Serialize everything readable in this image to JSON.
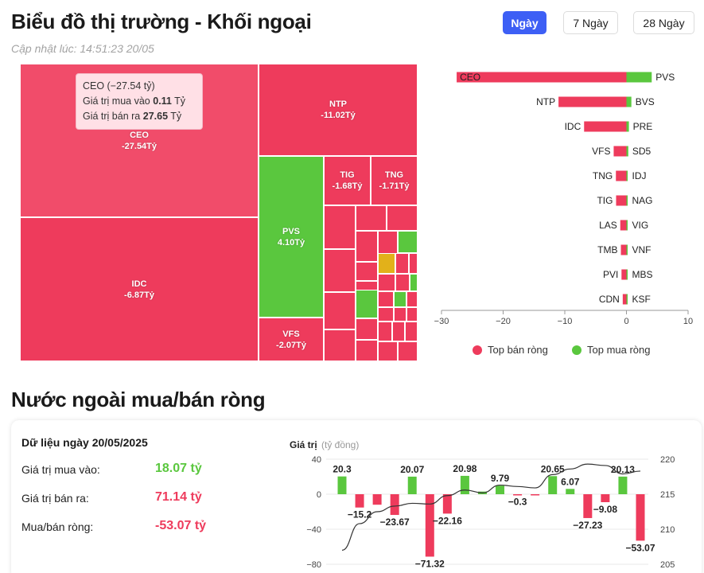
{
  "header": {
    "title": "Biểu đồ thị trường - Khối ngoại",
    "updated": "Cập nhật lúc: 14:51:23 20/05",
    "ranges": [
      "Ngày",
      "7 Ngày",
      "28 Ngày"
    ],
    "active_range": "Ngày"
  },
  "colors": {
    "sell": "#ee3b5c",
    "buy": "#5ac73e",
    "neutral": "#e2b11a",
    "accent": "#3d5ff5"
  },
  "treemap": {
    "tiles": [
      {
        "name": "CEO",
        "value": "-27.54Tỷ"
      },
      {
        "name": "IDC",
        "value": "-6.87Tỷ"
      },
      {
        "name": "NTP",
        "value": "-11.02Tỷ"
      },
      {
        "name": "PVS",
        "value": "4.10Tỷ"
      },
      {
        "name": "TIG",
        "value": "-1.68Tỷ"
      },
      {
        "name": "TNG",
        "value": "-1.71Tỷ"
      },
      {
        "name": "VFS",
        "value": "-2.07Tỷ"
      }
    ],
    "tooltip": {
      "title": "CEO (−27.54 tỷ)",
      "buy_label": "Giá trị mua vào",
      "buy_value": "0.11",
      "buy_unit": "Tỷ",
      "sell_label": "Giá trị bán ra",
      "sell_value": "27.65",
      "sell_unit": "Tỷ"
    }
  },
  "chart_data": [
    {
      "type": "bar",
      "orientation": "horizontal",
      "sell_tickers": [
        "CEO",
        "NTP",
        "IDC",
        "VFS",
        "TNG",
        "TIG",
        "LAS",
        "TMB",
        "PVI",
        "CDN"
      ],
      "sell_values": [
        -27.54,
        -11.02,
        -6.87,
        -2.07,
        -1.71,
        -1.68,
        -1.0,
        -0.9,
        -0.8,
        -0.6
      ],
      "buy_tickers": [
        "PVS",
        "BVS",
        "PRE",
        "SD5",
        "IDJ",
        "NAG",
        "VIG",
        "VNF",
        "MBS",
        "KSF"
      ],
      "buy_values": [
        4.1,
        0.8,
        0.4,
        0.3,
        0.2,
        0.2,
        0.15,
        0.1,
        0.1,
        0.05
      ],
      "xlim": [
        -30,
        10
      ],
      "xticks": [
        -30,
        -20,
        -10,
        0,
        10
      ],
      "legend": [
        "Top bán ròng",
        "Top mua ròng"
      ],
      "legend_position": "bottom"
    },
    {
      "type": "bar",
      "title": "Giá trị",
      "unit": "(tỷ đồng)",
      "values": [
        20.3,
        -15.2,
        -12,
        -23.67,
        20.07,
        -71.32,
        -22.16,
        20.98,
        3,
        9.79,
        -0.3,
        -1,
        20.65,
        6.07,
        -27.23,
        -9.08,
        20.13,
        -53.07
      ],
      "labels": [
        "20.3",
        "−15.2",
        "",
        "−23.67",
        "20.07",
        "−71.32",
        "−22.16",
        "20.98",
        "",
        "9.79",
        "−0.3",
        "",
        "20.65",
        "6.07",
        "−27.23",
        "−9.08",
        "20.13",
        "−53.07"
      ],
      "line_values": [
        207,
        210.8,
        212.5,
        213.3,
        213.7,
        213.6,
        214.8,
        215.6,
        215.2,
        216.3,
        216.1,
        215.9,
        217.8,
        218.6,
        219.3,
        219.1,
        217.9,
        218.3
      ],
      "ylim": [
        -80,
        40
      ],
      "yticks": [
        -80,
        -40,
        0,
        40
      ],
      "y2lim": [
        205,
        220
      ],
      "y2ticks": [
        205,
        210,
        215,
        220
      ]
    }
  ],
  "summary": {
    "date_label": "Dữ liệu ngày 20/05/2025",
    "buy_label": "Giá trị mua vào:",
    "buy_value": "18.07 tỷ",
    "sell_label": "Giá trị bán ra:",
    "sell_value": "71.14 tỷ",
    "net_label": "Mua/bán ròng:",
    "net_value": "-53.07 tỷ"
  },
  "section_title": "Nước ngoài mua/bán ròng"
}
